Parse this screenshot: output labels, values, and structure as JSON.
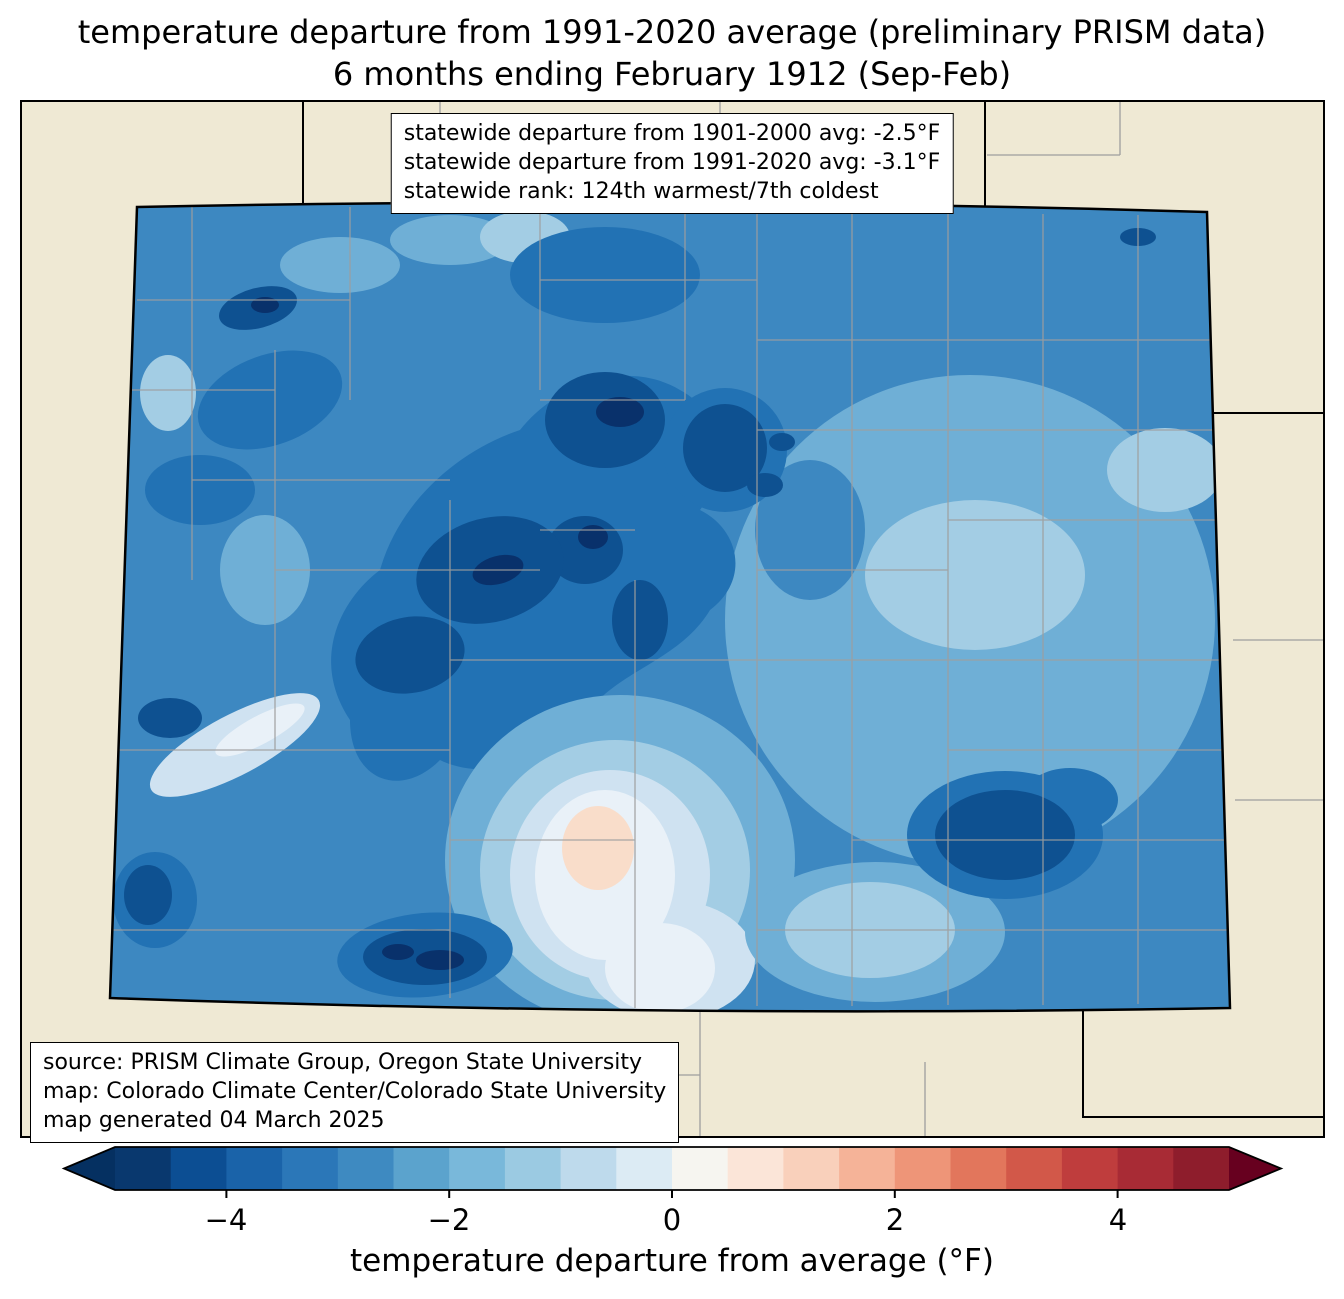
{
  "title": {
    "line1": "temperature departure from 1991-2020 average (preliminary PRISM data)",
    "line2": "6 months ending February 1912 (Sep-Feb)"
  },
  "stats_box": {
    "line1": "statewide departure from 1901-2000 avg: -2.5°F",
    "line2": "statewide departure from 1991-2020 avg: -3.1°F",
    "line3": "statewide rank: 124th warmest/7th coldest"
  },
  "source_box": {
    "line1": "source: PRISM Climate Group, Oregon State University",
    "line2": "map: Colorado Climate Center/Colorado State University",
    "line3": "map generated 04 March 2025"
  },
  "map": {
    "region": "Colorado",
    "background_color": "#efe9d4",
    "state_border_color": "#000000",
    "county_line_color": "#9e9e9e",
    "palette": {
      "base_blue": "#3d88c1",
      "light_blue": "#6fafd6",
      "lighter_blue": "#a3cde4",
      "pale_blue": "#cfe2f1",
      "near_white": "#e9f1f8",
      "pale_pink": "#f9ddca",
      "dark_blue": "#2272b4",
      "navy": "#0e5191",
      "darkest_navy": "#09316b"
    }
  },
  "colorbar": {
    "label": "temperature departure from average (°F)",
    "units": "°F",
    "range": [
      -5,
      5
    ],
    "tick_values": [
      -4,
      -2,
      0,
      2,
      4
    ],
    "ticks": [
      "−4",
      "−2",
      "0",
      "2",
      "4"
    ],
    "segment_colors": [
      "#09386e",
      "#0c4e93",
      "#1a63a9",
      "#2b77b8",
      "#3e8ac1",
      "#5ba3cd",
      "#79b8da",
      "#9bcae2",
      "#bedaec",
      "#dcebf4",
      "#f6f5f0",
      "#fbe5d8",
      "#f9d0bb",
      "#f5b398",
      "#ee9578",
      "#e2765c",
      "#d25849",
      "#bf3d3d",
      "#a82b35",
      "#8e1d2c"
    ],
    "left_arrow_color": "#053061",
    "right_arrow_color": "#67001f"
  }
}
